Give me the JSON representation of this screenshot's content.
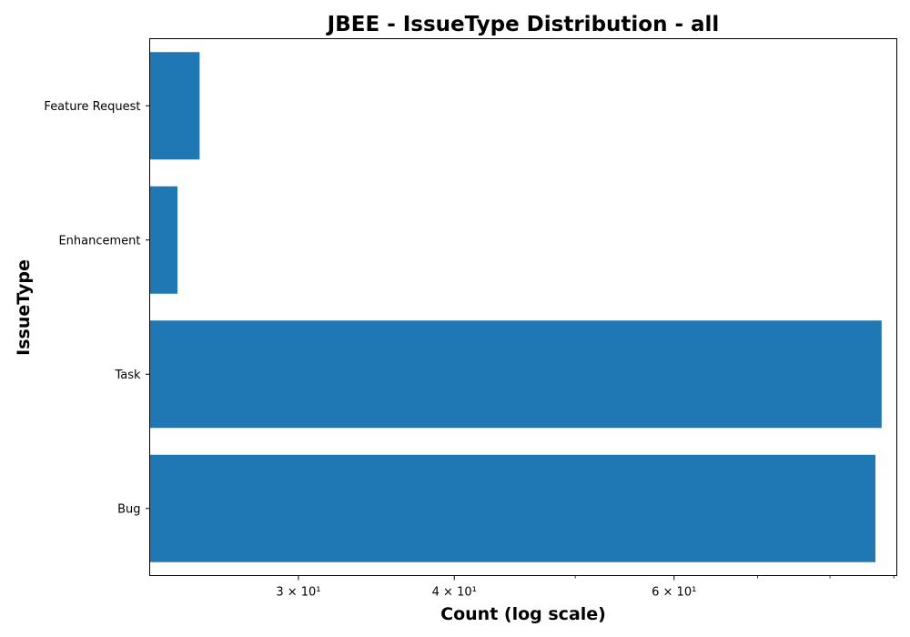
{
  "chart_data": {
    "type": "bar",
    "orientation": "horizontal",
    "title": "JBEE - IssueType Distribution - all",
    "xlabel": "Count (log scale)",
    "ylabel": "IssueType",
    "x_scale": "log",
    "xlim": [
      22.8,
      90.5
    ],
    "categories": [
      "Bug",
      "Task",
      "Enhancement",
      "Feature Request"
    ],
    "values": [
      87,
      88,
      24,
      25
    ],
    "x_tick_labels": [
      {
        "value": 30,
        "label": "3 × 10¹"
      },
      {
        "value": 40,
        "label": "4 × 10¹"
      },
      {
        "value": 60,
        "label": "6 × 10¹"
      }
    ],
    "x_minor_ticks": [
      50,
      70,
      80,
      90
    ],
    "grid": false,
    "color": "#1f77b4"
  }
}
